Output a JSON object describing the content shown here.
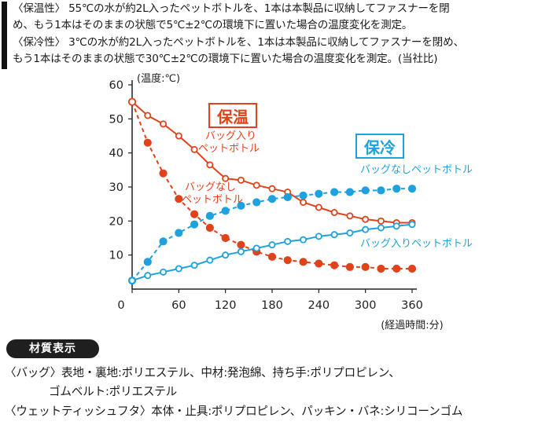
{
  "intro": {
    "line1": "〈保温性〉 55℃の水が約2L入ったペットボトルを、1本は本製品に収納してファスナーを閉",
    "line2": "め、もう1本はそのままの状態で5℃±2℃の環境下に置いた場合の温度変化を測定。",
    "line3": "〈保冷性〉 3℃の水が約2L入ったペットボトルを、1本は本製品に収納してファスナーを閉め、",
    "line4": "もう1本はそのままの状態で30℃±2℃の環境下に置いた場合の温度変化を測定。(当社比)"
  },
  "chart_data": {
    "type": "line",
    "ylabel": "(温度:℃)",
    "xlabel": "(経過時間:分)",
    "xlim": [
      0,
      360
    ],
    "ylim": [
      0,
      60
    ],
    "xticks": [
      0,
      60,
      120,
      180,
      240,
      300,
      360
    ],
    "yticks": [
      10,
      20,
      30,
      40,
      50,
      60
    ],
    "grid": false,
    "colors": {
      "warm": "#e0431c",
      "cold": "#1ea1dc"
    },
    "group_labels": {
      "warm": "保温",
      "cold": "保冷"
    },
    "series": [
      {
        "name": "バッグ入りペットボトル",
        "group": "warm",
        "style": "solid",
        "x": [
          0,
          20,
          40,
          60,
          80,
          100,
          120,
          140,
          160,
          180,
          200,
          220,
          240,
          260,
          280,
          300,
          320,
          340,
          360
        ],
        "y": [
          55,
          51,
          48.5,
          45,
          41,
          36.5,
          32.5,
          32,
          30.5,
          29.5,
          28.5,
          25.5,
          24,
          22.5,
          21.5,
          20.5,
          20,
          19.5,
          19.5
        ]
      },
      {
        "name": "バッグなしペットボトル",
        "group": "warm",
        "style": "dashed",
        "x": [
          0,
          20,
          40,
          60,
          80,
          100,
          120,
          140,
          160,
          180,
          200,
          220,
          240,
          260,
          280,
          300,
          320,
          340,
          360
        ],
        "y": [
          55,
          43,
          34,
          26.5,
          22,
          18,
          15,
          13,
          11,
          9.5,
          8.5,
          8,
          7.5,
          7,
          6.5,
          6.5,
          6,
          6,
          6
        ]
      },
      {
        "name": "バッグなしペットボトル",
        "group": "cold",
        "style": "dashed",
        "x": [
          0,
          20,
          40,
          60,
          80,
          100,
          120,
          140,
          160,
          180,
          200,
          220,
          240,
          260,
          280,
          300,
          320,
          340,
          360
        ],
        "y": [
          2.5,
          8,
          14,
          16.5,
          19,
          21.5,
          23,
          24.5,
          25.5,
          26.5,
          27,
          27.5,
          28,
          28.5,
          28.5,
          29,
          29,
          29.5,
          29.5
        ]
      },
      {
        "name": "バッグ入りペットボトル",
        "group": "cold",
        "style": "solid",
        "x": [
          0,
          20,
          40,
          60,
          80,
          100,
          120,
          140,
          160,
          180,
          200,
          220,
          240,
          260,
          280,
          300,
          320,
          340,
          360
        ],
        "y": [
          2.5,
          4,
          5,
          6,
          7,
          8.5,
          10,
          11,
          12,
          13,
          14,
          14.5,
          15.5,
          16,
          16.5,
          17.5,
          18,
          18.5,
          19
        ]
      }
    ],
    "annotations": {
      "warm_bag": [
        "バッグ入り",
        "ペットボトル"
      ],
      "warm_nobag": [
        "バッグなし",
        "ペットボトル"
      ],
      "cold_nobag": "バッグなしペットボトル",
      "cold_bag": "バッグ入りペットボトル"
    }
  },
  "specs": {
    "badge": "材質表示",
    "bag_line1": "〈バッグ〉表地・裏地:ポリエステル、中材:発泡綿、持ち手:ポリプロピレン、",
    "bag_line2": "ゴムベルト:ポリエステル",
    "wet_line": "〈ウェットティッシュフタ〉本体・止具:ポリプロピレン、パッキン・バネ:シリコーンゴム"
  }
}
